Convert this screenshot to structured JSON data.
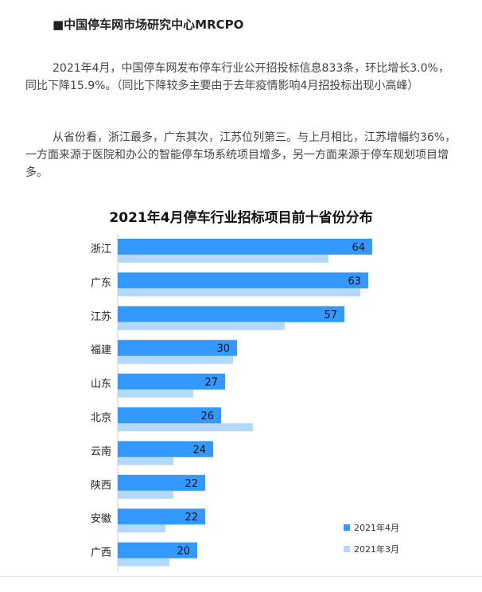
{
  "article": {
    "heading": "■中国停车网市场研究中心MRCPO",
    "paragraphs": [
      "2021年4月，中国停车网发布停车行业公开招投标信息833条，环比增长3.0%，同比下降15.9%。（同比下降较多主要由于去年疫情影响4月招投标出现小高峰）",
      "从省份看，浙江最多，广东其次，江苏位列第三。与上月相比，江苏增幅约36%，一方面来源于医院和办公的智能停车场系统项目增多，另一方面来源于停车规划项目增多。"
    ]
  },
  "chart_data": {
    "type": "bar",
    "orientation": "horizontal",
    "title": "2021年4月停车行业招标项目前十省份分布",
    "categories": [
      "浙江",
      "广东",
      "江苏",
      "福建",
      "山东",
      "北京",
      "云南",
      "陕西",
      "安徽",
      "广西"
    ],
    "series": [
      {
        "name": "2021年4月",
        "color": "#3399ff",
        "values": [
          64,
          63,
          57,
          30,
          27,
          26,
          24,
          22,
          22,
          20
        ],
        "data_labels": true
      },
      {
        "name": "2021年3月",
        "color": "#b3d9ff",
        "values": [
          53,
          61,
          42,
          29,
          19,
          34,
          14,
          14,
          12,
          13
        ],
        "data_labels": false
      }
    ],
    "xlim": [
      0,
      70
    ],
    "grid": false,
    "legend": "bottom-right"
  }
}
